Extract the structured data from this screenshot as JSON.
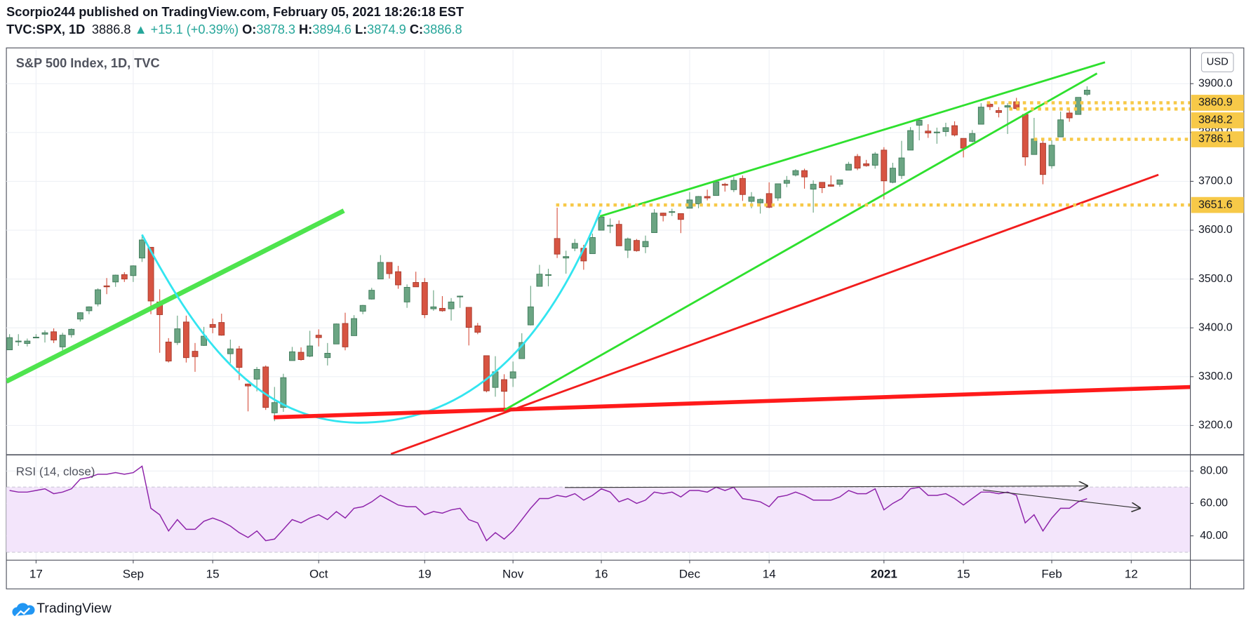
{
  "header": {
    "line1": "Scorpio244 published on TradingView.com, February 05, 2021 18:26:18 EST",
    "symbol": "TVC:SPX, 1D",
    "last": "3886.8",
    "arrow": "▲",
    "change": "+15.1 (+0.39%)",
    "o_label": "O:",
    "o": "3878.3",
    "h_label": "H:",
    "h": "3894.6",
    "l_label": "L:",
    "l": "3874.9",
    "c_label": "C:",
    "c": "3886.8"
  },
  "footer": {
    "brand": "TradingView"
  },
  "chart_data": {
    "type": "candlestick",
    "title": "S&P 500 Index, 1D, TVC",
    "currency": "USD",
    "categories": [
      null,
      null,
      null,
      "17",
      null,
      null,
      null,
      null,
      null,
      null,
      null,
      null,
      null,
      null,
      "Sep",
      null,
      null,
      null,
      null,
      null,
      null,
      null,
      null,
      "15",
      null,
      null,
      null,
      null,
      null,
      null,
      null,
      null,
      null,
      null,
      null,
      "Oct",
      null,
      null,
      null,
      null,
      null,
      null,
      null,
      null,
      null,
      null,
      null,
      "19",
      null,
      null,
      null,
      null,
      null,
      null,
      null,
      null,
      null,
      "Nov",
      null,
      null,
      null,
      null,
      null,
      null,
      null,
      null,
      null,
      "16",
      null,
      null,
      null,
      null,
      null,
      null,
      null,
      null,
      null,
      "Dec",
      null,
      null,
      null,
      null,
      null,
      null,
      null,
      null,
      "14",
      null,
      null,
      null,
      null,
      null,
      null,
      null,
      null,
      null,
      null,
      null,
      null,
      "2021",
      null,
      null,
      null,
      null,
      null,
      null,
      null,
      null,
      "15",
      null,
      null,
      null,
      null,
      null,
      null,
      null,
      null,
      null,
      "Feb",
      null,
      null,
      null,
      null,
      null,
      null,
      null,
      null,
      "12",
      null,
      null,
      null,
      null,
      null
    ],
    "open": [
      3355,
      3372,
      3368,
      3380,
      3387,
      3392,
      3361,
      3386,
      3418,
      3435,
      3449,
      3486,
      3494,
      3509,
      3507,
      3543,
      3565,
      3453,
      3371,
      3370,
      3412,
      3352,
      3364,
      3407,
      3411,
      3347,
      3357,
      3285,
      3295,
      3320,
      3226,
      3237,
      3333,
      3350,
      3342,
      3385,
      3339,
      3367,
      3409,
      3384,
      3434,
      3459,
      3500,
      3534,
      3515,
      3453,
      3493,
      3493,
      3439,
      3440,
      3439,
      3464,
      3442,
      3404,
      3343,
      3278,
      3294,
      3297,
      3337,
      3406,
      3485,
      3508,
      3583,
      3543,
      3563,
      3563,
      3552,
      3600,
      3610,
      3612,
      3559,
      3579,
      3566,
      3595,
      3635,
      3638,
      3634,
      3645,
      3654,
      3669,
      3671,
      3694,
      3683,
      3706,
      3659,
      3656,
      3675,
      3666,
      3696,
      3713,
      3722,
      3684,
      3698,
      3693,
      3694,
      3723,
      3751,
      3736,
      3733,
      3764,
      3698,
      3712,
      3764,
      3815,
      3803,
      3801,
      3802,
      3814,
      3788,
      3782,
      3817,
      3858,
      3845,
      3852,
      3863,
      3837,
      3755,
      3778,
      3732,
      3791,
      3840,
      3837,
      3878.3,
      null,
      null,
      null,
      null,
      null,
      null,
      null,
      null,
      null,
      null
    ],
    "high": [
      3387,
      3387,
      3378,
      3387,
      3395,
      3399,
      3390,
      3399,
      3432,
      3444,
      3481,
      3502,
      3509,
      3514,
      3528,
      3588,
      3565,
      3479,
      3379,
      3425,
      3425,
      3369,
      3402,
      3419,
      3429,
      3376,
      3363,
      3286,
      3320,
      3323,
      3279,
      3306,
      3361,
      3360,
      3394,
      3397,
      3369,
      3409,
      3431,
      3426,
      3447,
      3482,
      3549,
      3534,
      3527,
      3489,
      3515,
      3502,
      3477,
      3465,
      3461,
      3466,
      3442,
      3410,
      3342,
      3342,
      3305,
      3331,
      3389,
      3486,
      3529,
      3521,
      3646,
      3558,
      3582,
      3570,
      3593,
      3628,
      3624,
      3620,
      3585,
      3582,
      3589,
      3643,
      3636,
      3644,
      3634,
      3678,
      3670,
      3683,
      3699,
      3697,
      3709,
      3712,
      3678,
      3665,
      3698,
      3695,
      3711,
      3725,
      3726,
      3702,
      3698,
      3712,
      3703,
      3740,
      3756,
      3744,
      3760,
      3770,
      3738,
      3783,
      3811,
      3826,
      3817,
      3810,
      3820,
      3823,
      3788,
      3805,
      3860,
      3861,
      3852,
      3860,
      3871,
      3837,
      3830,
      3784,
      3784,
      3843,
      3847,
      3872,
      3894.6,
      null,
      null,
      null,
      null,
      null,
      null,
      null,
      null,
      null,
      null
    ],
    "low": [
      3355,
      3363,
      3362,
      3379,
      3370,
      3369,
      3354,
      3380,
      3413,
      3428,
      3444,
      3469,
      3484,
      3494,
      3494,
      3535,
      3428,
      3349,
      3329,
      3365,
      3329,
      3310,
      3363,
      3389,
      3384,
      3328,
      3293,
      3229,
      3270,
      3232,
      3209,
      3228,
      3333,
      3333,
      3340,
      3362,
      3323,
      3367,
      3354,
      3384,
      3428,
      3458,
      3500,
      3501,
      3480,
      3441,
      3484,
      3420,
      3435,
      3433,
      3415,
      3441,
      3364,
      3387,
      3268,
      3259,
      3234,
      3279,
      3337,
      3405,
      3485,
      3485,
      3543,
      3511,
      3557,
      3519,
      3552,
      3600,
      3594,
      3568,
      3543,
      3556,
      3553,
      3595,
      3618,
      3629,
      3594,
      3645,
      3645,
      3661,
      3671,
      3679,
      3678,
      3660,
      3645,
      3634,
      3645,
      3660,
      3688,
      3710,
      3685,
      3636,
      3676,
      3689,
      3689,
      3723,
      3723,
      3730,
      3726,
      3663,
      3696,
      3705,
      3764,
      3784,
      3789,
      3777,
      3792,
      3792,
      3749,
      3780,
      3817,
      3846,
      3831,
      3797,
      3847,
      3732,
      3755,
      3694,
      3726,
      3791,
      3822,
      3837,
      3874.9,
      null,
      null,
      null,
      null,
      null,
      null,
      null,
      null,
      null,
      null
    ],
    "close": [
      3380,
      3373,
      3373,
      3381,
      3390,
      3375,
      3385,
      3397,
      3431,
      3443,
      3478,
      3484,
      3508,
      3500,
      3527,
      3580,
      3455,
      3427,
      3332,
      3398,
      3339,
      3341,
      3383,
      3401,
      3385,
      3357,
      3319,
      3281,
      3315,
      3237,
      3247,
      3298,
      3351,
      3335,
      3363,
      3380,
      3348,
      3408,
      3361,
      3419,
      3446,
      3477,
      3534,
      3511,
      3488,
      3483,
      3484,
      3427,
      3443,
      3435,
      3453,
      3465,
      3401,
      3391,
      3271,
      3310,
      3270,
      3310,
      3370,
      3443,
      3510,
      3509,
      3551,
      3546,
      3573,
      3537,
      3585,
      3627,
      3610,
      3568,
      3582,
      3558,
      3577,
      3635,
      3630,
      3638,
      3622,
      3662,
      3669,
      3666,
      3699,
      3692,
      3702,
      3673,
      3668,
      3663,
      3647,
      3695,
      3702,
      3722,
      3709,
      3694,
      3687,
      3690,
      3703,
      3735,
      3727,
      3732,
      3756,
      3701,
      3727,
      3748,
      3804,
      3825,
      3799,
      3801,
      3810,
      3795,
      3768,
      3798,
      3852,
      3853,
      3841,
      3855,
      3849,
      3750,
      3787,
      3714,
      3774,
      3826,
      3830,
      3872,
      3886.8,
      null,
      null,
      null,
      null,
      null,
      null,
      null,
      null,
      null,
      null
    ],
    "up_color": "#6ba583",
    "down_color": "#d75442",
    "ylim": [
      3140,
      3970
    ],
    "yticks": [
      {
        "value": 3200,
        "label": "3200.0"
      },
      {
        "value": 3300,
        "label": "3300.0"
      },
      {
        "value": 3400,
        "label": "3400.0"
      },
      {
        "value": 3500,
        "label": "3500.0"
      },
      {
        "value": 3600,
        "label": "3600.0"
      },
      {
        "value": 3700,
        "label": "3700.0"
      },
      {
        "value": 3800,
        "label": "3800.0"
      },
      {
        "value": 3900,
        "label": "3900.0"
      }
    ],
    "grid": true,
    "levels": [
      3860.9,
      3848.2,
      3786.1,
      3651.6
    ],
    "level_color": "#f7c948",
    "rsi": {
      "name": "RSI (14, close)",
      "color": "#8e24aa",
      "values": [
        68,
        67,
        67,
        68,
        69,
        66,
        67,
        69,
        75,
        76,
        78,
        78,
        79,
        78,
        79,
        83,
        57,
        53,
        43,
        50,
        44,
        44,
        49,
        51,
        49,
        46,
        42,
        39,
        43,
        37,
        38,
        44,
        50,
        48,
        51,
        53,
        50,
        55,
        51,
        57,
        58,
        61,
        65,
        62,
        59,
        58,
        58,
        53,
        55,
        54,
        56,
        57,
        50,
        48,
        37,
        42,
        38,
        43,
        50,
        57,
        63,
        63,
        65,
        64,
        66,
        62,
        65,
        69,
        67,
        61,
        63,
        60,
        62,
        67,
        66,
        67,
        64,
        68,
        68,
        67,
        70,
        68,
        70,
        63,
        62,
        61,
        58,
        64,
        65,
        67,
        65,
        62,
        62,
        62,
        64,
        68,
        66,
        66,
        69,
        56,
        60,
        63,
        69,
        70,
        65,
        65,
        66,
        63,
        59,
        63,
        67,
        67,
        66,
        67,
        65,
        48,
        53,
        43,
        51,
        57,
        57,
        61,
        63,
        null,
        null,
        null,
        null,
        null,
        null,
        null,
        null,
        null,
        null
      ],
      "ylim": [
        25,
        89
      ],
      "yticks": [
        {
          "value": 80,
          "label": "80.00"
        },
        {
          "value": 60,
          "label": "60.00"
        },
        {
          "value": 40,
          "label": "40.00"
        }
      ],
      "band": [
        70,
        30
      ]
    }
  }
}
